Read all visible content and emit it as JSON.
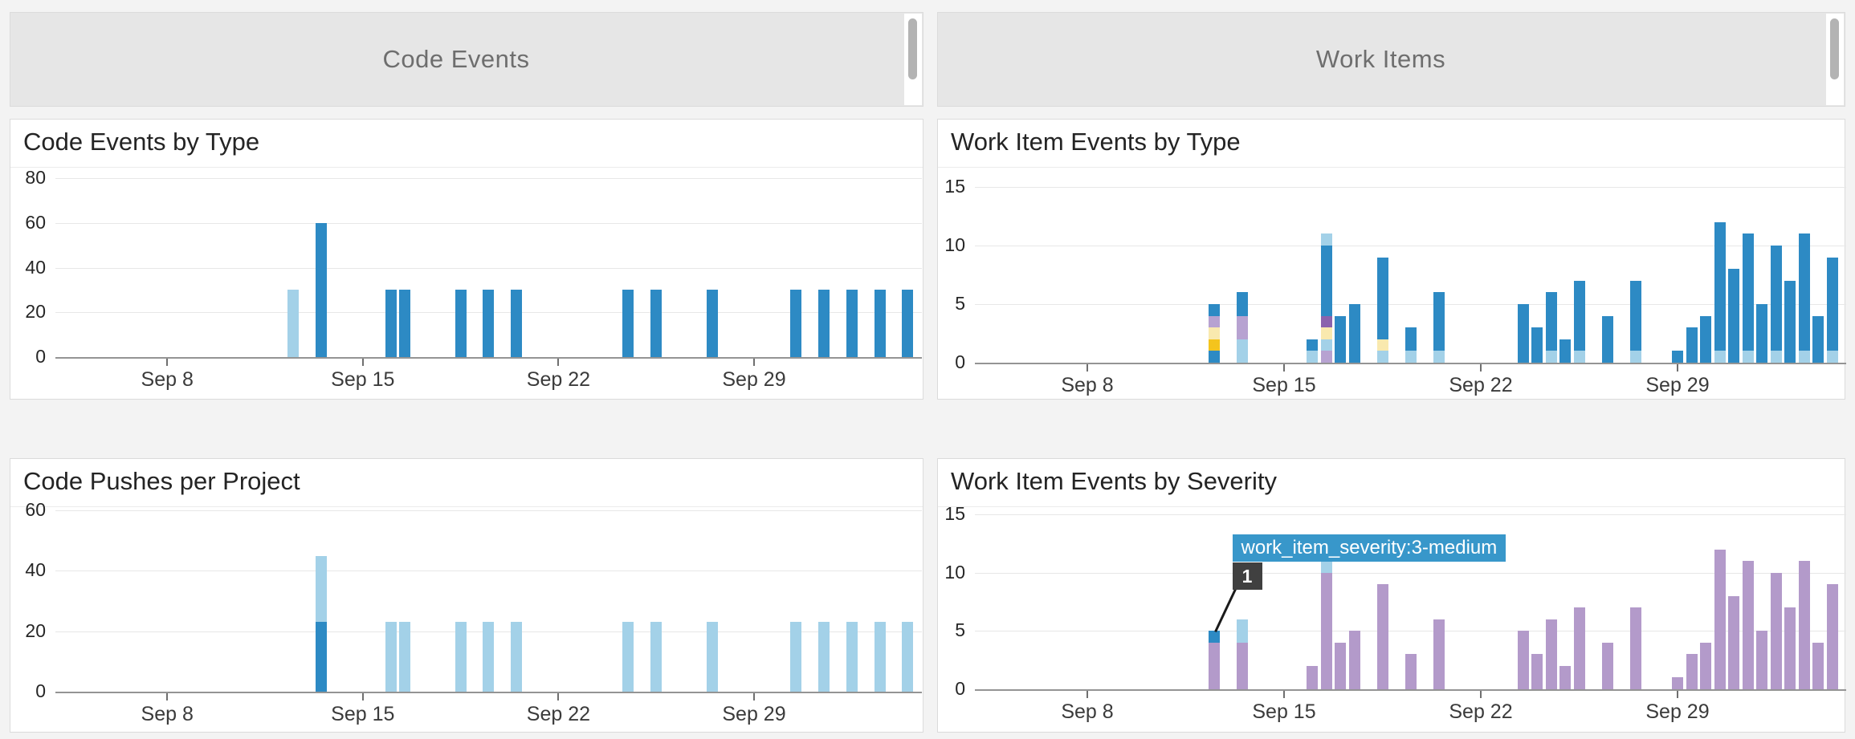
{
  "headers": [
    {
      "title": "Code Events"
    },
    {
      "title": "Work Items"
    }
  ],
  "colors": {
    "blue": "#2d8ac4",
    "light_blue": "#a3d1e8",
    "lavender": "#b7a2d1",
    "severity_purple": "#b39aca",
    "dark_purple": "#8a63ad",
    "gold": "#f4c41d",
    "cream": "#f9e9ae",
    "gridline": "#e7e7e7",
    "axis_line": "#949494",
    "tooltip_bg": "#3897ca",
    "tooltip_badge_bg": "#404040",
    "header_bg": "#e6e6e6",
    "page_bg": "#f3f3f3"
  },
  "x_axis": {
    "day0_date": "Sep 4",
    "domain_days": [
      0,
      31
    ],
    "tick_days": [
      4,
      11,
      18,
      25
    ],
    "tick_labels": [
      "Sep 8",
      "Sep 15",
      "Sep 22",
      "Sep 29"
    ]
  },
  "chart_data": [
    {
      "id": "code_events_by_type",
      "title": "Code Events by Type",
      "type": "bar",
      "ylim": [
        0,
        80
      ],
      "yticks": [
        0,
        20,
        40,
        60,
        80
      ],
      "bars": [
        {
          "day": 8.5,
          "stack": [
            [
              "light_blue",
              30
            ]
          ]
        },
        {
          "day": 9.5,
          "stack": [
            [
              "blue",
              60
            ]
          ]
        },
        {
          "day": 12,
          "stack": [
            [
              "blue",
              30
            ]
          ]
        },
        {
          "day": 12.5,
          "stack": [
            [
              "blue",
              30
            ]
          ]
        },
        {
          "day": 14.5,
          "stack": [
            [
              "blue",
              30
            ]
          ]
        },
        {
          "day": 15.5,
          "stack": [
            [
              "blue",
              30
            ]
          ]
        },
        {
          "day": 16.5,
          "stack": [
            [
              "blue",
              30
            ]
          ]
        },
        {
          "day": 20.5,
          "stack": [
            [
              "blue",
              30
            ]
          ]
        },
        {
          "day": 21.5,
          "stack": [
            [
              "blue",
              30
            ]
          ]
        },
        {
          "day": 23.5,
          "stack": [
            [
              "blue",
              30
            ]
          ]
        },
        {
          "day": 26.5,
          "stack": [
            [
              "blue",
              30
            ]
          ]
        },
        {
          "day": 27.5,
          "stack": [
            [
              "blue",
              30
            ]
          ]
        },
        {
          "day": 28.5,
          "stack": [
            [
              "blue",
              30
            ]
          ]
        },
        {
          "day": 29.5,
          "stack": [
            [
              "blue",
              30
            ]
          ]
        },
        {
          "day": 30.5,
          "stack": [
            [
              "blue",
              30
            ]
          ]
        }
      ]
    },
    {
      "id": "work_item_events_by_type",
      "title": "Work Item Events by Type",
      "type": "bar",
      "ylim": [
        0,
        15
      ],
      "yticks": [
        0,
        5,
        10,
        15
      ],
      "bars": [
        {
          "day": 8.5,
          "stack": [
            [
              "blue",
              1
            ],
            [
              "gold",
              1
            ],
            [
              "cream",
              1
            ],
            [
              "lavender",
              1
            ],
            [
              "blue",
              1
            ]
          ]
        },
        {
          "day": 9.5,
          "stack": [
            [
              "light_blue",
              2
            ],
            [
              "lavender",
              2
            ],
            [
              "blue",
              2
            ]
          ]
        },
        {
          "day": 12,
          "stack": [
            [
              "light_blue",
              1
            ],
            [
              "blue",
              1
            ]
          ]
        },
        {
          "day": 12.5,
          "stack": [
            [
              "lavender",
              1
            ],
            [
              "light_blue",
              1
            ],
            [
              "cream",
              1
            ],
            [
              "dark_purple",
              1
            ],
            [
              "blue",
              6
            ],
            [
              "light_blue",
              1
            ]
          ]
        },
        {
          "day": 13,
          "stack": [
            [
              "blue",
              4
            ]
          ]
        },
        {
          "day": 13.5,
          "stack": [
            [
              "blue",
              5
            ]
          ]
        },
        {
          "day": 14.5,
          "stack": [
            [
              "light_blue",
              1
            ],
            [
              "cream",
              1
            ],
            [
              "blue",
              7
            ]
          ]
        },
        {
          "day": 15.5,
          "stack": [
            [
              "light_blue",
              1
            ],
            [
              "blue",
              2
            ]
          ]
        },
        {
          "day": 16.5,
          "stack": [
            [
              "light_blue",
              1
            ],
            [
              "blue",
              5
            ]
          ]
        },
        {
          "day": 19.5,
          "stack": [
            [
              "blue",
              5
            ]
          ]
        },
        {
          "day": 20,
          "stack": [
            [
              "blue",
              3
            ]
          ]
        },
        {
          "day": 20.5,
          "stack": [
            [
              "light_blue",
              1
            ],
            [
              "blue",
              5
            ]
          ]
        },
        {
          "day": 21,
          "stack": [
            [
              "blue",
              2
            ]
          ]
        },
        {
          "day": 21.5,
          "stack": [
            [
              "light_blue",
              1
            ],
            [
              "blue",
              6
            ]
          ]
        },
        {
          "day": 22.5,
          "stack": [
            [
              "blue",
              4
            ]
          ]
        },
        {
          "day": 23.5,
          "stack": [
            [
              "light_blue",
              1
            ],
            [
              "blue",
              6
            ]
          ]
        },
        {
          "day": 25,
          "stack": [
            [
              "blue",
              1
            ]
          ]
        },
        {
          "day": 25.5,
          "stack": [
            [
              "blue",
              3
            ]
          ]
        },
        {
          "day": 26,
          "stack": [
            [
              "blue",
              4
            ]
          ]
        },
        {
          "day": 26.5,
          "stack": [
            [
              "light_blue",
              1
            ],
            [
              "blue",
              11
            ]
          ]
        },
        {
          "day": 27,
          "stack": [
            [
              "blue",
              8
            ]
          ]
        },
        {
          "day": 27.5,
          "stack": [
            [
              "light_blue",
              1
            ],
            [
              "blue",
              10
            ]
          ]
        },
        {
          "day": 28,
          "stack": [
            [
              "blue",
              5
            ]
          ]
        },
        {
          "day": 28.5,
          "stack": [
            [
              "light_blue",
              1
            ],
            [
              "blue",
              9
            ]
          ]
        },
        {
          "day": 29,
          "stack": [
            [
              "blue",
              7
            ]
          ]
        },
        {
          "day": 29.5,
          "stack": [
            [
              "light_blue",
              1
            ],
            [
              "blue",
              10
            ]
          ]
        },
        {
          "day": 30,
          "stack": [
            [
              "blue",
              4
            ]
          ]
        },
        {
          "day": 30.5,
          "stack": [
            [
              "light_blue",
              1
            ],
            [
              "blue",
              8
            ]
          ]
        }
      ]
    },
    {
      "id": "code_pushes_per_project",
      "title": "Code Pushes per Project",
      "type": "bar",
      "ylim": [
        0,
        60
      ],
      "yticks": [
        0,
        20,
        40,
        60
      ],
      "bars": [
        {
          "day": 9.5,
          "stack": [
            [
              "blue",
              23
            ],
            [
              "light_blue",
              22
            ]
          ]
        },
        {
          "day": 12,
          "stack": [
            [
              "light_blue",
              23
            ]
          ]
        },
        {
          "day": 12.5,
          "stack": [
            [
              "light_blue",
              23
            ]
          ]
        },
        {
          "day": 14.5,
          "stack": [
            [
              "light_blue",
              23
            ]
          ]
        },
        {
          "day": 15.5,
          "stack": [
            [
              "light_blue",
              23
            ]
          ]
        },
        {
          "day": 16.5,
          "stack": [
            [
              "light_blue",
              23
            ]
          ]
        },
        {
          "day": 20.5,
          "stack": [
            [
              "light_blue",
              23
            ]
          ]
        },
        {
          "day": 21.5,
          "stack": [
            [
              "light_blue",
              23
            ]
          ]
        },
        {
          "day": 23.5,
          "stack": [
            [
              "light_blue",
              23
            ]
          ]
        },
        {
          "day": 26.5,
          "stack": [
            [
              "light_blue",
              23
            ]
          ]
        },
        {
          "day": 27.5,
          "stack": [
            [
              "light_blue",
              23
            ]
          ]
        },
        {
          "day": 28.5,
          "stack": [
            [
              "light_blue",
              23
            ]
          ]
        },
        {
          "day": 29.5,
          "stack": [
            [
              "light_blue",
              23
            ]
          ]
        },
        {
          "day": 30.5,
          "stack": [
            [
              "light_blue",
              23
            ]
          ]
        }
      ]
    },
    {
      "id": "work_item_events_by_severity",
      "title": "Work Item Events by Severity",
      "type": "bar",
      "ylim": [
        0,
        15
      ],
      "yticks": [
        0,
        5,
        10,
        15
      ],
      "tooltip": {
        "label": "work_item_severity:3-medium",
        "value": "1",
        "target_day": 8.5,
        "target_total": 5
      },
      "bars": [
        {
          "day": 8.5,
          "stack": [
            [
              "severity_purple",
              4
            ],
            [
              "blue",
              1
            ]
          ]
        },
        {
          "day": 9.5,
          "stack": [
            [
              "severity_purple",
              4
            ],
            [
              "light_blue",
              2
            ]
          ]
        },
        {
          "day": 12,
          "stack": [
            [
              "severity_purple",
              2
            ]
          ]
        },
        {
          "day": 12.5,
          "stack": [
            [
              "severity_purple",
              10
            ],
            [
              "light_blue",
              1
            ]
          ]
        },
        {
          "day": 13,
          "stack": [
            [
              "severity_purple",
              4
            ]
          ]
        },
        {
          "day": 13.5,
          "stack": [
            [
              "severity_purple",
              5
            ]
          ]
        },
        {
          "day": 14.5,
          "stack": [
            [
              "severity_purple",
              9
            ]
          ]
        },
        {
          "day": 15.5,
          "stack": [
            [
              "severity_purple",
              3
            ]
          ]
        },
        {
          "day": 16.5,
          "stack": [
            [
              "severity_purple",
              6
            ]
          ]
        },
        {
          "day": 19.5,
          "stack": [
            [
              "severity_purple",
              5
            ]
          ]
        },
        {
          "day": 20,
          "stack": [
            [
              "severity_purple",
              3
            ]
          ]
        },
        {
          "day": 20.5,
          "stack": [
            [
              "severity_purple",
              6
            ]
          ]
        },
        {
          "day": 21,
          "stack": [
            [
              "severity_purple",
              2
            ]
          ]
        },
        {
          "day": 21.5,
          "stack": [
            [
              "severity_purple",
              7
            ]
          ]
        },
        {
          "day": 22.5,
          "stack": [
            [
              "severity_purple",
              4
            ]
          ]
        },
        {
          "day": 23.5,
          "stack": [
            [
              "severity_purple",
              7
            ]
          ]
        },
        {
          "day": 25,
          "stack": [
            [
              "severity_purple",
              1
            ]
          ]
        },
        {
          "day": 25.5,
          "stack": [
            [
              "severity_purple",
              3
            ]
          ]
        },
        {
          "day": 26,
          "stack": [
            [
              "severity_purple",
              4
            ]
          ]
        },
        {
          "day": 26.5,
          "stack": [
            [
              "severity_purple",
              12
            ]
          ]
        },
        {
          "day": 27,
          "stack": [
            [
              "severity_purple",
              8
            ]
          ]
        },
        {
          "day": 27.5,
          "stack": [
            [
              "severity_purple",
              11
            ]
          ]
        },
        {
          "day": 28,
          "stack": [
            [
              "severity_purple",
              5
            ]
          ]
        },
        {
          "day": 28.5,
          "stack": [
            [
              "severity_purple",
              10
            ]
          ]
        },
        {
          "day": 29,
          "stack": [
            [
              "severity_purple",
              7
            ]
          ]
        },
        {
          "day": 29.5,
          "stack": [
            [
              "severity_purple",
              11
            ]
          ]
        },
        {
          "day": 30,
          "stack": [
            [
              "severity_purple",
              4
            ]
          ]
        },
        {
          "day": 30.5,
          "stack": [
            [
              "severity_purple",
              9
            ]
          ]
        }
      ]
    }
  ]
}
